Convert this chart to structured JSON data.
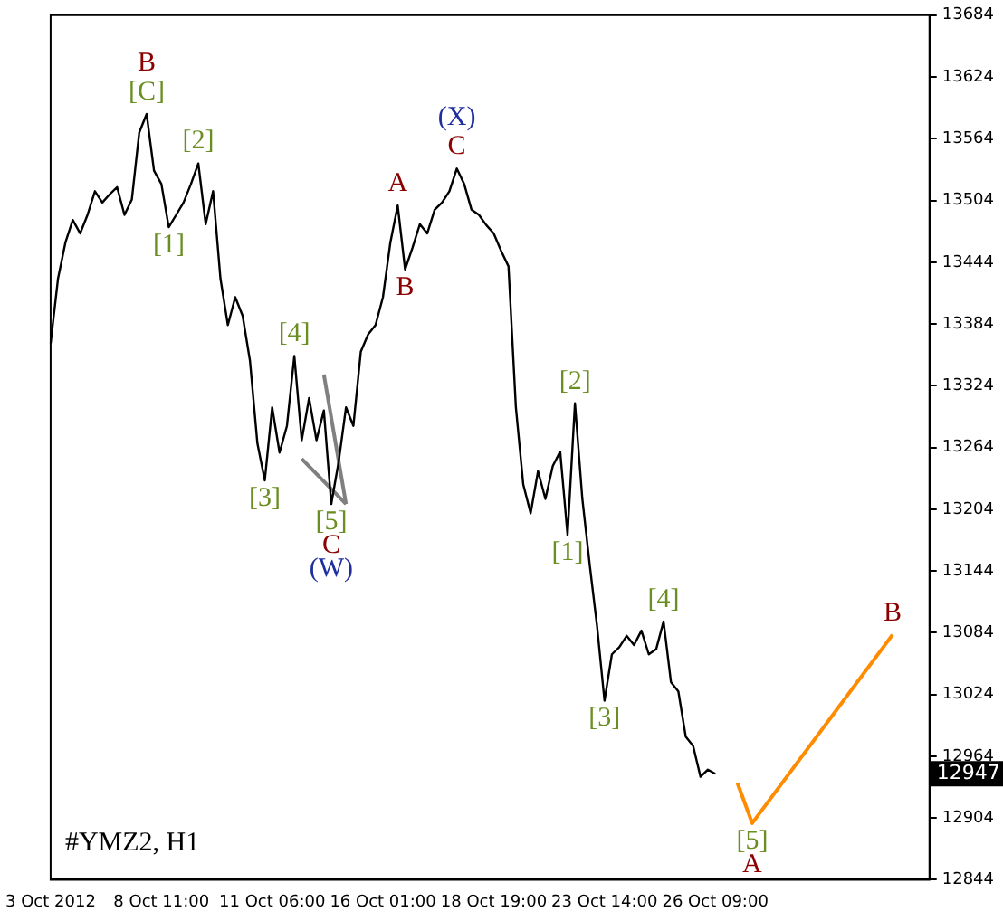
{
  "chart_data": {
    "type": "line",
    "ylim": [
      12844,
      13684
    ],
    "categories": [
      "3 Oct 2012",
      null,
      null,
      null,
      null,
      null,
      null,
      null,
      null,
      null,
      null,
      null,
      null,
      null,
      null,
      "8 Oct 11:00",
      null,
      null,
      null,
      null,
      null,
      null,
      null,
      null,
      null,
      null,
      null,
      null,
      null,
      null,
      "11 Oct 06:00",
      null,
      null,
      null,
      null,
      null,
      null,
      null,
      null,
      null,
      null,
      null,
      null,
      null,
      null,
      "16 Oct 01:00",
      null,
      null,
      null,
      null,
      null,
      null,
      null,
      null,
      null,
      null,
      null,
      null,
      null,
      null,
      "18 Oct 19:00",
      null,
      null,
      null,
      null,
      null,
      null,
      null,
      null,
      null,
      null,
      null,
      null,
      null,
      null,
      "23 Oct 14:00",
      null,
      null,
      null,
      null,
      null,
      null,
      null,
      null,
      null,
      null,
      null,
      null,
      null,
      null,
      "26 Oct 09:00",
      null,
      null,
      null,
      null,
      null,
      null,
      null,
      null,
      null,
      null,
      null,
      null,
      null,
      null,
      null,
      null,
      null,
      null,
      null,
      null,
      null,
      null,
      null,
      null,
      null,
      null,
      null,
      null,
      null
    ],
    "yticks": [
      12844,
      12904,
      12964,
      13024,
      13084,
      13144,
      13204,
      13264,
      13324,
      13384,
      13444,
      13504,
      13564,
      13624,
      13684
    ],
    "grid": false,
    "legend": false,
    "marker": "none",
    "line_style": "solid",
    "series": [
      {
        "color": "#000000",
        "values": [
          13365,
          13428,
          13463,
          13485,
          13472,
          13490,
          13513,
          13502,
          13510,
          13517,
          13490,
          13505,
          13570,
          13588,
          13533,
          13520,
          13478,
          13490,
          13502,
          13520,
          13540,
          13481,
          13513,
          13428,
          13383,
          13410,
          13392,
          13348,
          13268,
          13232,
          13303,
          13259,
          13285,
          13353,
          13271,
          13312,
          13271,
          13300,
          13209,
          13250,
          13303,
          13285,
          13357,
          13374,
          13383,
          13410,
          13463,
          13499,
          13437,
          13458,
          13481,
          13472,
          13495,
          13502,
          13513,
          13535,
          13520,
          13495,
          13490,
          13480,
          13472,
          13455,
          13440,
          13303,
          13228,
          13200,
          13241,
          13214,
          13246,
          13260,
          13179,
          13307,
          13214,
          13150,
          13090,
          13018,
          13063,
          13070,
          13081,
          13072,
          13086,
          13063,
          13068,
          13095,
          13036,
          13027,
          12983,
          12974,
          12944,
          12951,
          12947,
          null,
          null,
          null,
          null,
          null,
          null,
          null,
          null,
          null,
          null,
          null,
          null,
          null,
          null,
          null,
          null,
          null,
          null,
          null,
          null,
          null,
          null,
          null,
          null,
          null,
          null,
          null,
          null,
          null
        ]
      },
      {
        "color": "#808080",
        "values": [
          null,
          null,
          null,
          null,
          null,
          null,
          null,
          null,
          null,
          null,
          null,
          null,
          null,
          null,
          null,
          null,
          null,
          null,
          null,
          null,
          null,
          null,
          null,
          null,
          null,
          null,
          null,
          null,
          null,
          null,
          null,
          null,
          null,
          null,
          13253,
          null,
          null,
          null,
          null,
          null,
          13209,
          null,
          null,
          null,
          null,
          null,
          null,
          null,
          null,
          null,
          null,
          null,
          null,
          null,
          null,
          null,
          null,
          null,
          null,
          null,
          null,
          null,
          null,
          null,
          null,
          null,
          null,
          null,
          null,
          null,
          null,
          null,
          null,
          null,
          null,
          null,
          null,
          null,
          null,
          null,
          null,
          null,
          null,
          null,
          null,
          null,
          null,
          null,
          null,
          null,
          null,
          null,
          null,
          null,
          null,
          null,
          null,
          null,
          null,
          null,
          null,
          null,
          null,
          null,
          null,
          null,
          null,
          null,
          null,
          null,
          null,
          null,
          null,
          null,
          null,
          null,
          null,
          null,
          null,
          null
        ]
      },
      {
        "color": "#808080",
        "values": [
          null,
          null,
          null,
          null,
          null,
          null,
          null,
          null,
          null,
          null,
          null,
          null,
          null,
          null,
          null,
          null,
          null,
          null,
          null,
          null,
          null,
          null,
          null,
          null,
          null,
          null,
          null,
          null,
          null,
          null,
          null,
          null,
          null,
          null,
          null,
          null,
          null,
          13335,
          null,
          null,
          13209,
          null,
          null,
          null,
          null,
          null,
          null,
          null,
          null,
          null,
          null,
          null,
          null,
          null,
          null,
          null,
          null,
          null,
          null,
          null,
          null,
          null,
          null,
          null,
          null,
          null,
          null,
          null,
          null,
          null,
          null,
          null,
          null,
          null,
          null,
          null,
          null,
          null,
          null,
          null,
          null,
          null,
          null,
          null,
          null,
          null,
          null,
          null,
          null,
          null,
          null,
          null,
          null,
          null,
          null,
          null,
          null,
          null,
          null,
          null,
          null,
          null,
          null,
          null,
          null,
          null,
          null,
          null,
          null,
          null,
          null,
          null,
          null,
          null,
          null,
          null,
          null,
          null,
          null,
          null
        ]
      },
      {
        "color": "#ff8c00",
        "values": [
          null,
          null,
          null,
          null,
          null,
          null,
          null,
          null,
          null,
          null,
          null,
          null,
          null,
          null,
          null,
          null,
          null,
          null,
          null,
          null,
          null,
          null,
          null,
          null,
          null,
          null,
          null,
          null,
          null,
          null,
          null,
          null,
          null,
          null,
          null,
          null,
          null,
          null,
          null,
          null,
          null,
          null,
          null,
          null,
          null,
          null,
          null,
          null,
          null,
          null,
          null,
          null,
          null,
          null,
          null,
          null,
          null,
          null,
          null,
          null,
          null,
          null,
          null,
          null,
          null,
          null,
          null,
          null,
          null,
          null,
          null,
          null,
          null,
          null,
          null,
          null,
          null,
          null,
          null,
          null,
          null,
          null,
          null,
          null,
          null,
          null,
          null,
          null,
          null,
          null,
          null,
          null,
          null,
          12938,
          null,
          12899,
          null,
          null,
          null,
          null,
          null,
          null,
          null,
          null,
          null,
          null,
          null,
          null,
          null,
          null,
          null,
          null,
          null,
          null,
          13082,
          null,
          null,
          null,
          null,
          null
        ]
      }
    ],
    "annotations": [
      "#YMZ2, H1",
      {
        "text": "12947",
        "y": 12947
      },
      {
        "text": "B",
        "y": 13588
      },
      {
        "text": "[C]",
        "y": 13588
      },
      {
        "text": "[2]",
        "y": 13540
      },
      {
        "text": "[1]",
        "y": 13478
      },
      {
        "text": "[4]",
        "y": 13353
      },
      {
        "text": "[3]",
        "y": 13232
      },
      {
        "text": "[5]",
        "y": 13209
      },
      {
        "text": "C",
        "y": 13209
      },
      {
        "text": "(W)",
        "y": 13209
      },
      {
        "text": "A",
        "y": 13499
      },
      {
        "text": "B",
        "y": 13437
      },
      {
        "text": "(X)",
        "y": 13535
      },
      {
        "text": "C",
        "y": 13535
      },
      {
        "text": "[2]",
        "y": 13307
      },
      {
        "text": "[1]",
        "y": 13179
      },
      {
        "text": "[4]",
        "y": 13095
      },
      {
        "text": "[3]",
        "y": 13018
      },
      {
        "text": "[5]",
        "y": 12899
      },
      {
        "text": "A",
        "y": 12899
      },
      {
        "text": "B",
        "y": 13082
      }
    ]
  }
}
